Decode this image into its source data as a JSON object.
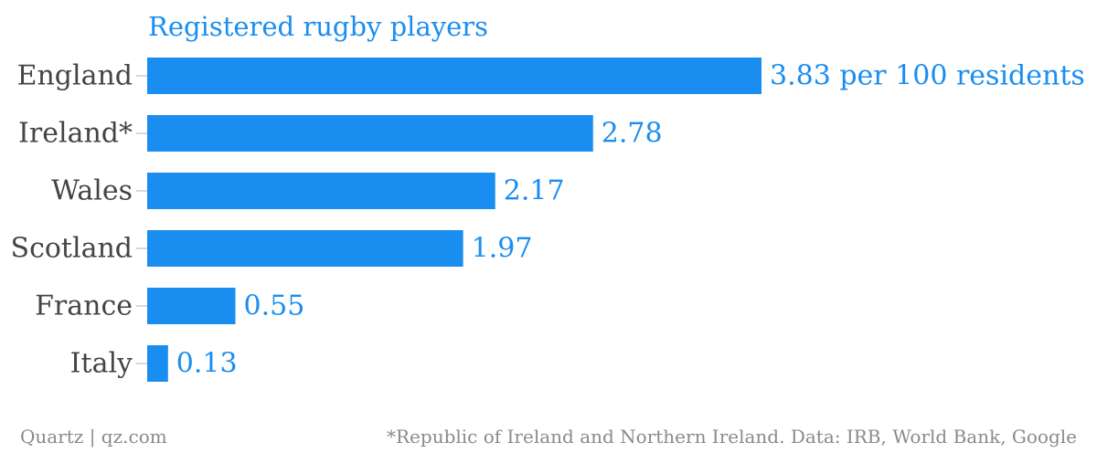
{
  "chart_data": {
    "type": "bar",
    "orientation": "horizontal",
    "title": "Registered rugby players",
    "categories": [
      "England",
      "Ireland*",
      "Wales",
      "Scotland",
      "France",
      "Italy"
    ],
    "values": [
      3.83,
      2.78,
      2.17,
      1.97,
      0.55,
      0.13
    ],
    "value_labels": [
      "3.83 per 100 residents",
      "2.78",
      "2.17",
      "1.97",
      "0.55",
      "0.13"
    ],
    "xlabel": "",
    "ylabel": "",
    "grid": false,
    "bar_color": "#1a8ef0"
  },
  "footer": {
    "source": "Quartz | qz.com",
    "note": "*Republic of Ireland and Northern Ireland. Data: IRB, World Bank, Google"
  },
  "colors": {
    "accent": "#1a8ef0",
    "category_text": "#444444",
    "footer_text": "#8a8a8a",
    "tick": "#cccccc"
  }
}
